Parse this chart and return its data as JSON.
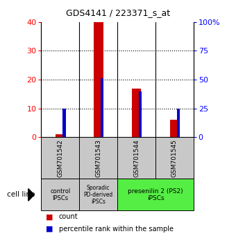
{
  "title": "GDS4141 / 223371_s_at",
  "samples": [
    "GSM701542",
    "GSM701543",
    "GSM701544",
    "GSM701545"
  ],
  "counts": [
    1,
    40,
    17,
    6
  ],
  "percentile_ranks": [
    25,
    51,
    40,
    25
  ],
  "left_ylim": [
    0,
    40
  ],
  "right_ylim": [
    0,
    100
  ],
  "left_yticks": [
    0,
    10,
    20,
    30,
    40
  ],
  "right_yticks": [
    0,
    25,
    50,
    75,
    100
  ],
  "right_yticklabels": [
    "0",
    "25",
    "50",
    "75",
    "100%"
  ],
  "bar_color": "#cc0000",
  "percentile_color": "#0000cc",
  "bar_width": 0.25,
  "blue_bar_width": 0.08,
  "group_colors": [
    "#c8c8c8",
    "#c8c8c8",
    "#55ee44"
  ],
  "cell_line_label": "cell line",
  "legend_count_label": "count",
  "legend_percentile_label": "percentile rank within the sample",
  "grid_color": "#000000",
  "grid_linestyle": ":",
  "grid_linewidth": 0.8
}
